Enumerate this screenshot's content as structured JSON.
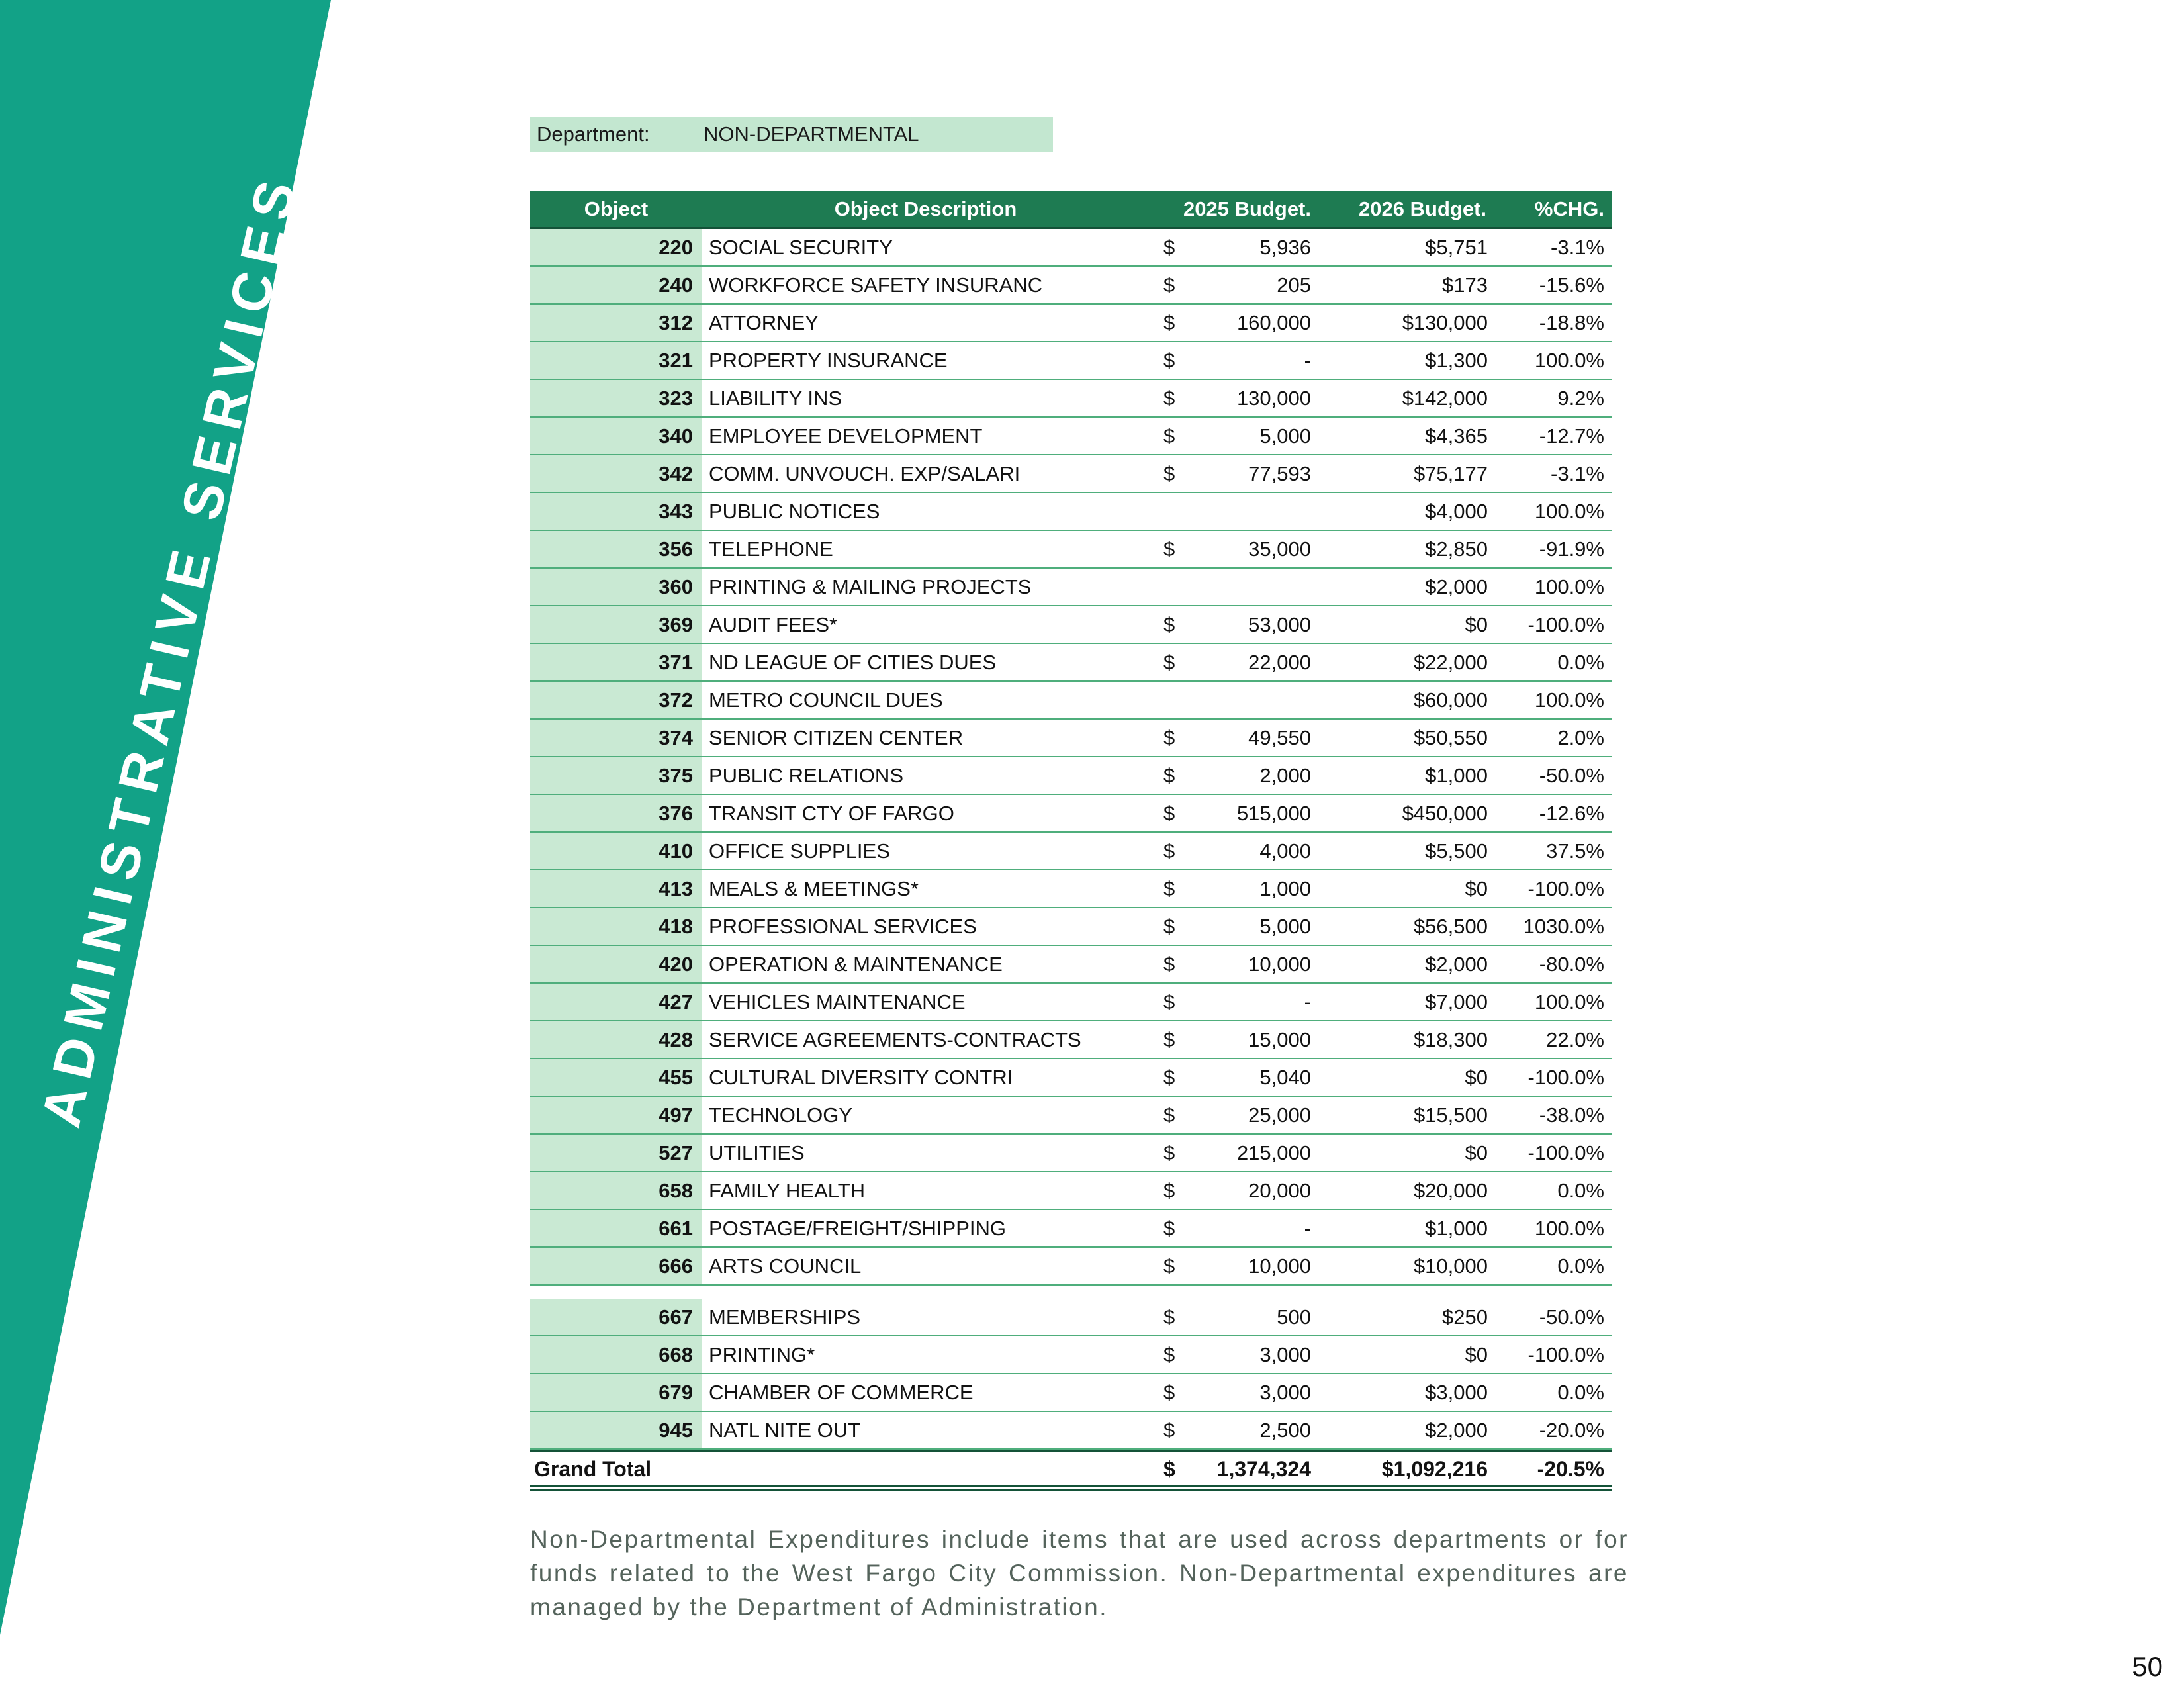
{
  "colors": {
    "teal": "#12A287",
    "header_green": "#1E7B52",
    "light_green": "#C9E9D3",
    "dept_green": "#C3E7D0",
    "line_green": "#4FAE7C",
    "dark_green": "#145238",
    "footer_text": "#54635B"
  },
  "banner": {
    "text": "ADMINISTRATIVE SERVICES"
  },
  "department": {
    "label": "Department:",
    "value": "NON-DEPARTMENTAL"
  },
  "table": {
    "headers": [
      "Object",
      "Object Description",
      "2025 Budget.",
      "2026 Budget.",
      "%CHG."
    ],
    "rows": [
      {
        "object": "220",
        "description": "SOCIAL SECURITY",
        "usd_2025": "$",
        "budget_2025": "5,936",
        "budget_2026": "$5,751",
        "pct_chg": "-3.1%"
      },
      {
        "object": "240",
        "description": "WORKFORCE SAFETY INSURANC",
        "usd_2025": "$",
        "budget_2025": "205",
        "budget_2026": "$173",
        "pct_chg": "-15.6%"
      },
      {
        "object": "312",
        "description": "ATTORNEY",
        "usd_2025": "$",
        "budget_2025": "160,000",
        "budget_2026": "$130,000",
        "pct_chg": "-18.8%"
      },
      {
        "object": "321",
        "description": "PROPERTY INSURANCE",
        "usd_2025": "$",
        "budget_2025": "-",
        "budget_2026": "$1,300",
        "pct_chg": "100.0%"
      },
      {
        "object": "323",
        "description": "LIABILITY INS",
        "usd_2025": "$",
        "budget_2025": "130,000",
        "budget_2026": "$142,000",
        "pct_chg": "9.2%"
      },
      {
        "object": "340",
        "description": "EMPLOYEE DEVELOPMENT",
        "usd_2025": "$",
        "budget_2025": "5,000",
        "budget_2026": "$4,365",
        "pct_chg": "-12.7%"
      },
      {
        "object": "342",
        "description": "COMM. UNVOUCH. EXP/SALARI",
        "usd_2025": "$",
        "budget_2025": "77,593",
        "budget_2026": "$75,177",
        "pct_chg": "-3.1%"
      },
      {
        "object": "343",
        "description": "PUBLIC NOTICES",
        "usd_2025": "",
        "budget_2025": "",
        "budget_2026": "$4,000",
        "pct_chg": "100.0%"
      },
      {
        "object": "356",
        "description": "TELEPHONE",
        "usd_2025": "$",
        "budget_2025": "35,000",
        "budget_2026": "$2,850",
        "pct_chg": "-91.9%"
      },
      {
        "object": "360",
        "description": "PRINTING & MAILING PROJECTS",
        "usd_2025": "",
        "budget_2025": "",
        "budget_2026": "$2,000",
        "pct_chg": "100.0%"
      },
      {
        "object": "369",
        "description": "AUDIT FEES*",
        "usd_2025": "$",
        "budget_2025": "53,000",
        "budget_2026": "$0",
        "pct_chg": "-100.0%"
      },
      {
        "object": "371",
        "description": "ND LEAGUE OF CITIES DUES",
        "usd_2025": "$",
        "budget_2025": "22,000",
        "budget_2026": "$22,000",
        "pct_chg": "0.0%"
      },
      {
        "object": "372",
        "description": "METRO COUNCIL DUES",
        "usd_2025": "",
        "budget_2025": "",
        "budget_2026": "$60,000",
        "pct_chg": "100.0%"
      },
      {
        "object": "374",
        "description": "SENIOR CITIZEN CENTER",
        "usd_2025": "$",
        "budget_2025": "49,550",
        "budget_2026": "$50,550",
        "pct_chg": "2.0%"
      },
      {
        "object": "375",
        "description": "PUBLIC RELATIONS",
        "usd_2025": "$",
        "budget_2025": "2,000",
        "budget_2026": "$1,000",
        "pct_chg": "-50.0%"
      },
      {
        "object": "376",
        "description": "TRANSIT CTY OF FARGO",
        "usd_2025": "$",
        "budget_2025": "515,000",
        "budget_2026": "$450,000",
        "pct_chg": "-12.6%"
      },
      {
        "object": "410",
        "description": "OFFICE SUPPLIES",
        "usd_2025": "$",
        "budget_2025": "4,000",
        "budget_2026": "$5,500",
        "pct_chg": "37.5%"
      },
      {
        "object": "413",
        "description": "MEALS & MEETINGS*",
        "usd_2025": "$",
        "budget_2025": "1,000",
        "budget_2026": "$0",
        "pct_chg": "-100.0%"
      },
      {
        "object": "418",
        "description": "PROFESSIONAL SERVICES",
        "usd_2025": "$",
        "budget_2025": "5,000",
        "budget_2026": "$56,500",
        "pct_chg": "1030.0%"
      },
      {
        "object": "420",
        "description": "OPERATION & MAINTENANCE",
        "usd_2025": "$",
        "budget_2025": "10,000",
        "budget_2026": "$2,000",
        "pct_chg": "-80.0%"
      },
      {
        "object": "427",
        "description": "VEHICLES MAINTENANCE",
        "usd_2025": "$",
        "budget_2025": "-",
        "budget_2026": "$7,000",
        "pct_chg": "100.0%"
      },
      {
        "object": "428",
        "description": "SERVICE AGREEMENTS-CONTRACTS",
        "usd_2025": "$",
        "budget_2025": "15,000",
        "budget_2026": "$18,300",
        "pct_chg": "22.0%"
      },
      {
        "object": "455",
        "description": "CULTURAL DIVERSITY CONTRI",
        "usd_2025": "$",
        "budget_2025": "5,040",
        "budget_2026": "$0",
        "pct_chg": "-100.0%"
      },
      {
        "object": "497",
        "description": "TECHNOLOGY",
        "usd_2025": "$",
        "budget_2025": "25,000",
        "budget_2026": "$15,500",
        "pct_chg": "-38.0%"
      },
      {
        "object": "527",
        "description": "UTILITIES",
        "usd_2025": "$",
        "budget_2025": "215,000",
        "budget_2026": "$0",
        "pct_chg": "-100.0%"
      },
      {
        "object": "658",
        "description": "FAMILY HEALTH",
        "usd_2025": "$",
        "budget_2025": "20,000",
        "budget_2026": "$20,000",
        "pct_chg": "0.0%"
      },
      {
        "object": "661",
        "description": "POSTAGE/FREIGHT/SHIPPING",
        "usd_2025": "$",
        "budget_2025": "-",
        "budget_2026": "$1,000",
        "pct_chg": "100.0%"
      },
      {
        "object": "666",
        "description": "ARTS COUNCIL",
        "usd_2025": "$",
        "budget_2025": "10,000",
        "budget_2026": "$10,000",
        "pct_chg": "0.0%"
      },
      {
        "object": "667",
        "description": "MEMBERSHIPS",
        "usd_2025": "$",
        "budget_2025": "500",
        "budget_2026": "$250",
        "pct_chg": "-50.0%",
        "gap_before": true
      },
      {
        "object": "668",
        "description": "PRINTING*",
        "usd_2025": "$",
        "budget_2025": "3,000",
        "budget_2026": "$0",
        "pct_chg": "-100.0%"
      },
      {
        "object": "679",
        "description": "CHAMBER OF COMMERCE",
        "usd_2025": "$",
        "budget_2025": "3,000",
        "budget_2026": "$3,000",
        "pct_chg": "0.0%"
      },
      {
        "object": "945",
        "description": "NATL NITE OUT",
        "usd_2025": "$",
        "budget_2025": "2,500",
        "budget_2026": "$2,000",
        "pct_chg": "-20.0%"
      }
    ],
    "grand_total": {
      "label": "Grand Total",
      "usd_2025": "$",
      "budget_2025": "1,374,324",
      "budget_2026": "$1,092,216",
      "pct_chg": "-20.5%"
    }
  },
  "footer": {
    "note": "Non-Departmental Expenditures include items that are used across departments or for funds related to the West Fargo City Commission. Non-Departmental expenditures are managed by the Department of Administration.",
    "page_number": "50"
  }
}
